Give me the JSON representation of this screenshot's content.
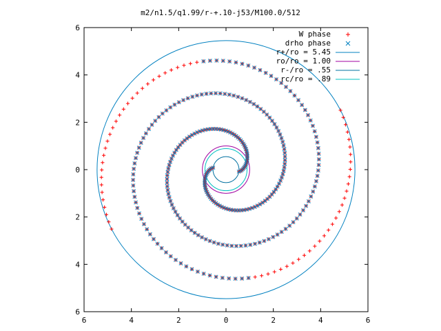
{
  "chart_data": {
    "type": "scatter",
    "title": "m2/n1.5/q1.99/r-+.10-j53/M100.0/512",
    "xlabel": "",
    "ylabel": "",
    "xlim": [
      -6,
      6
    ],
    "ylim": [
      -6,
      6
    ],
    "x_ticks": [
      "6",
      "4",
      "2",
      "0",
      "2",
      "4",
      "6"
    ],
    "y_ticks": [
      "6",
      "4",
      "2",
      "0",
      "2",
      "4",
      "6"
    ],
    "grid": false,
    "legend_position": "top-right",
    "series": [
      {
        "name": "W phase",
        "kind": "points",
        "marker": "plus",
        "color": "#ff0000"
      },
      {
        "name": "drho phase",
        "kind": "points",
        "marker": "cross",
        "color": "#0080c0"
      },
      {
        "name": "r+/ro = 5.45",
        "kind": "circle",
        "radius": 5.45,
        "color": "#0080c0"
      },
      {
        "name": "ro/ro = 1.00",
        "kind": "circle",
        "radius": 1.0,
        "color": "#a000a0"
      },
      {
        "name": "r-/ro = .55",
        "kind": "circle",
        "radius": 0.55,
        "color": "#0070a0"
      },
      {
        "name": "rc/ro = .89",
        "kind": "circle",
        "radius": 0.89,
        "color": "#00c0c0"
      }
    ],
    "spiral": {
      "arms": 2,
      "inner_radius": 0.55,
      "outer_radius": 5.45,
      "rotation_turns_approx": 1.6
    }
  }
}
